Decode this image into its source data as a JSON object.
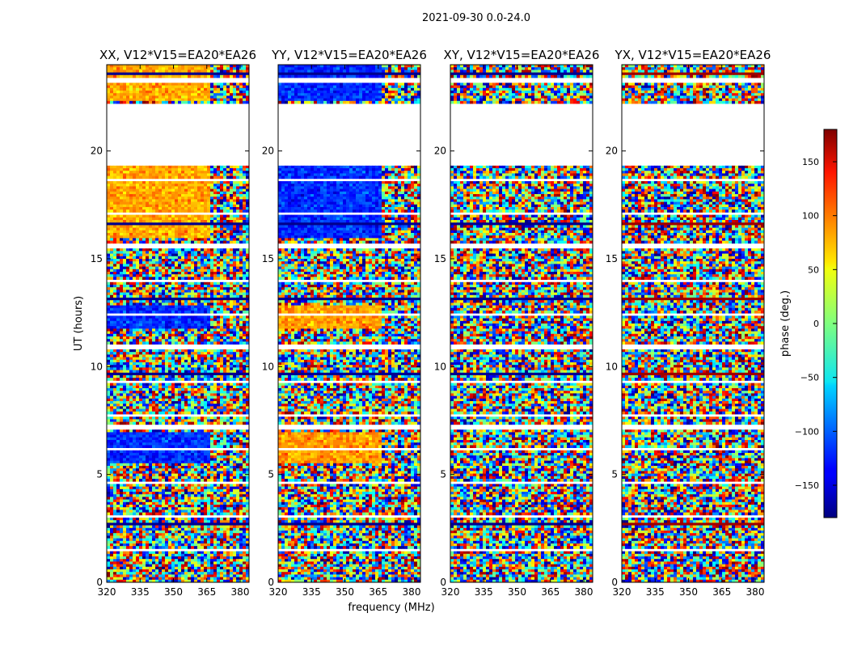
{
  "chart_data": {
    "type": "heatmap",
    "suptitle": "2021-09-30 0.0-24.0",
    "xlabel": "frequency (MHz)",
    "ylabel": "UT (hours)",
    "xlim": [
      320,
      384
    ],
    "ylim": [
      0,
      24
    ],
    "xticks": [
      320,
      335,
      350,
      365,
      380
    ],
    "yticks": [
      0,
      5,
      10,
      15,
      20
    ],
    "panels": [
      {
        "title": "XX, V12*V15=EA20*EA26",
        "baseline_phase_deg": -120,
        "baseline_phase_deg_late": 75
      },
      {
        "title": "YY, V12*V15=EA20*EA26",
        "baseline_phase_deg": 80,
        "baseline_phase_deg_late": -120
      },
      {
        "title": "XY, V12*V15=EA20*EA26",
        "baseline_phase_deg": null,
        "baseline_phase_deg_late": null
      },
      {
        "title": "YX, V12*V15=EA20*EA26",
        "baseline_phase_deg": null,
        "baseline_phase_deg_late": null
      }
    ],
    "flagged_ut_ranges": [
      [
        19.3,
        22.2
      ],
      [
        7.1,
        7.35
      ],
      [
        10.9,
        11.05
      ],
      [
        15.6,
        15.75
      ],
      [
        23.2,
        23.35
      ]
    ],
    "colorbar": {
      "label": "phase (deg.)",
      "range": [
        -180,
        180
      ],
      "ticks": [
        150,
        100,
        50,
        0,
        -50,
        -100,
        -150
      ],
      "tick_labels": [
        "150",
        "100",
        "50",
        "0",
        "−50",
        "−100",
        "−150"
      ],
      "colormap": "jet"
    }
  }
}
